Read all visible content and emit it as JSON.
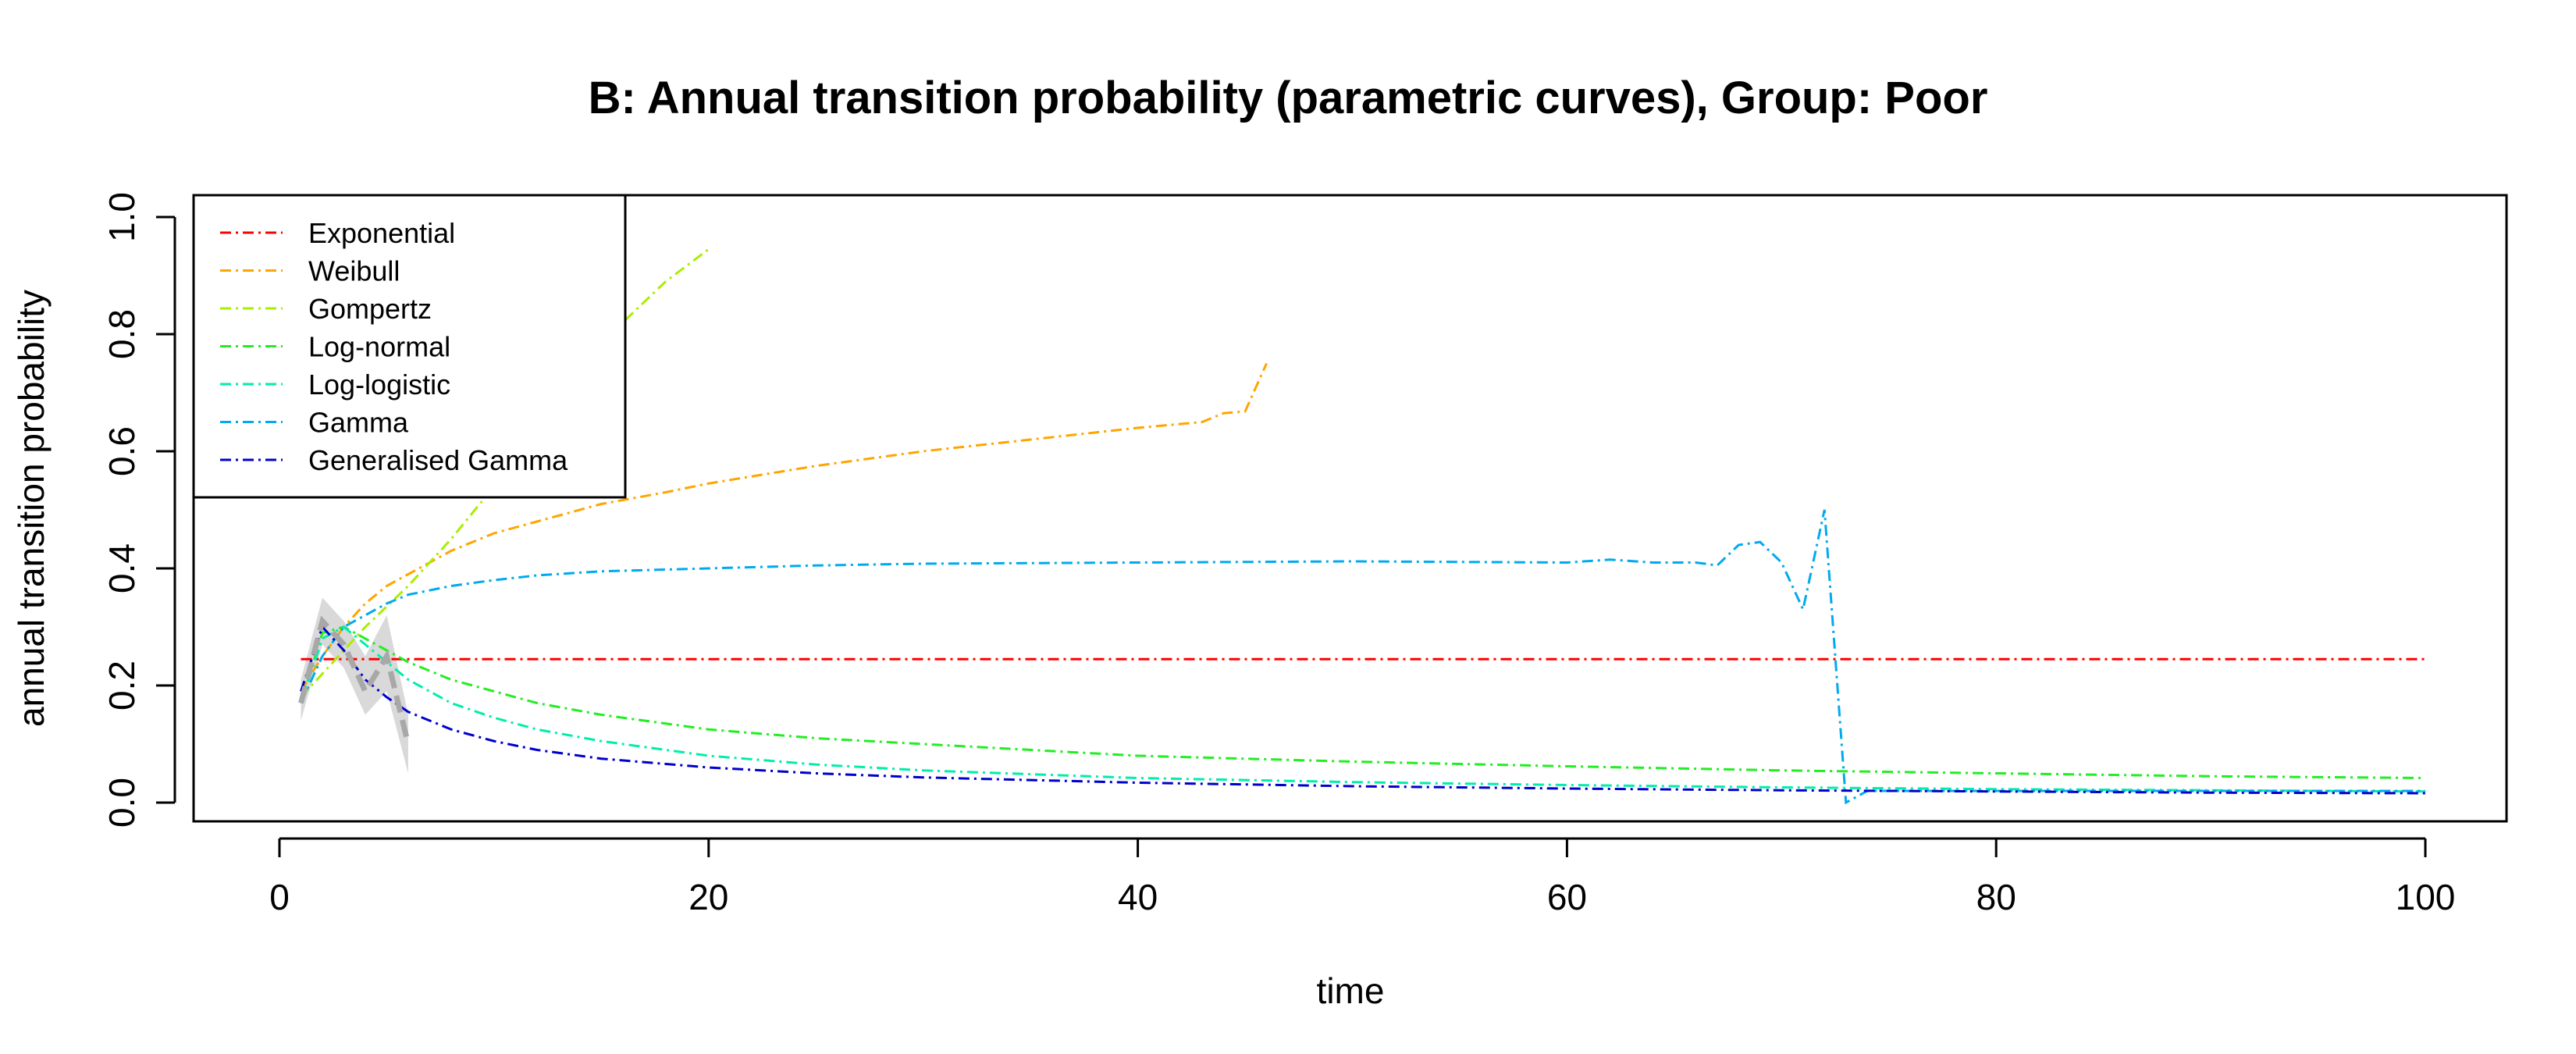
{
  "chart_data": {
    "type": "line",
    "title": "B: Annual transition probability (parametric curves), Group: Poor",
    "xlabel": "time",
    "ylabel": "annual transition probability",
    "xlim": [
      0,
      100
    ],
    "ylim": [
      0,
      1
    ],
    "xticks": [
      "0",
      "20",
      "40",
      "60",
      "80",
      "100"
    ],
    "yticks": [
      "0.0",
      "0.2",
      "0.4",
      "0.6",
      "0.8",
      "1.0"
    ],
    "legend_position": "top-left",
    "observed": {
      "color": "#A8A8A8",
      "band_color": "#D9D9D9",
      "x": [
        1,
        2,
        3,
        4,
        5,
        6
      ],
      "y": [
        0.17,
        0.31,
        0.27,
        0.19,
        0.25,
        0.1
      ],
      "lower": [
        0.14,
        0.27,
        0.23,
        0.15,
        0.19,
        0.05
      ],
      "upper": [
        0.21,
        0.35,
        0.31,
        0.25,
        0.32,
        0.15
      ]
    },
    "series": [
      {
        "name": "Exponential",
        "color": "#FF0000",
        "x": [
          1,
          100
        ],
        "y": [
          0.245,
          0.245
        ]
      },
      {
        "name": "Weibull",
        "color": "#FFA500",
        "x": [
          1,
          2,
          3,
          4,
          5,
          6,
          8,
          10,
          12,
          15,
          18,
          20,
          25,
          30,
          35,
          40,
          43,
          44,
          45,
          46
        ],
        "y": [
          0.19,
          0.25,
          0.3,
          0.34,
          0.37,
          0.39,
          0.43,
          0.46,
          0.48,
          0.51,
          0.53,
          0.545,
          0.575,
          0.6,
          0.62,
          0.64,
          0.65,
          0.665,
          0.668,
          0.75
        ]
      },
      {
        "name": "Gompertz",
        "color": "#AAEE00",
        "x": [
          1,
          2,
          4,
          6,
          8,
          10,
          12,
          14,
          16,
          18,
          20
        ],
        "y": [
          0.18,
          0.22,
          0.3,
          0.37,
          0.45,
          0.54,
          0.63,
          0.73,
          0.82,
          0.89,
          0.945
        ]
      },
      {
        "name": "Log-normal",
        "color": "#22EE22",
        "x": [
          1,
          2,
          3,
          4,
          5,
          6,
          8,
          10,
          12,
          15,
          20,
          25,
          30,
          40,
          50,
          60,
          70,
          80,
          90,
          100
        ],
        "y": [
          0.17,
          0.29,
          0.3,
          0.28,
          0.26,
          0.24,
          0.21,
          0.19,
          0.17,
          0.15,
          0.125,
          0.11,
          0.1,
          0.08,
          0.07,
          0.062,
          0.055,
          0.05,
          0.045,
          0.042
        ]
      },
      {
        "name": "Log-logistic",
        "color": "#00EEAA",
        "x": [
          1,
          2,
          3,
          4,
          5,
          6,
          8,
          10,
          12,
          15,
          20,
          25,
          30,
          40,
          50,
          60,
          70,
          80,
          90,
          100
        ],
        "y": [
          0.17,
          0.28,
          0.3,
          0.27,
          0.24,
          0.21,
          0.17,
          0.145,
          0.125,
          0.105,
          0.08,
          0.065,
          0.055,
          0.042,
          0.035,
          0.03,
          0.026,
          0.023,
          0.021,
          0.019
        ]
      },
      {
        "name": "Gamma",
        "color": "#00AAEE",
        "x": [
          1,
          2,
          3,
          4,
          5,
          6,
          8,
          10,
          12,
          15,
          20,
          25,
          30,
          40,
          50,
          60,
          62,
          64,
          66,
          67,
          68,
          69,
          70,
          71,
          72,
          73,
          74,
          80,
          90,
          100
        ],
        "y": [
          0.17,
          0.25,
          0.3,
          0.32,
          0.34,
          0.355,
          0.37,
          0.38,
          0.388,
          0.395,
          0.4,
          0.405,
          0.408,
          0.41,
          0.412,
          0.41,
          0.415,
          0.41,
          0.41,
          0.405,
          0.44,
          0.445,
          0.41,
          0.33,
          0.5,
          0.0,
          0.02,
          0.02,
          0.02,
          0.02
        ]
      },
      {
        "name": "Generalised Gamma",
        "color": "#0000CC",
        "x": [
          1,
          2,
          3,
          4,
          5,
          6,
          8,
          10,
          12,
          15,
          20,
          25,
          30,
          40,
          50,
          60,
          70,
          80,
          90,
          100
        ],
        "y": [
          0.19,
          0.3,
          0.26,
          0.21,
          0.18,
          0.155,
          0.125,
          0.105,
          0.09,
          0.075,
          0.06,
          0.05,
          0.043,
          0.034,
          0.028,
          0.024,
          0.021,
          0.019,
          0.017,
          0.016
        ]
      }
    ]
  }
}
